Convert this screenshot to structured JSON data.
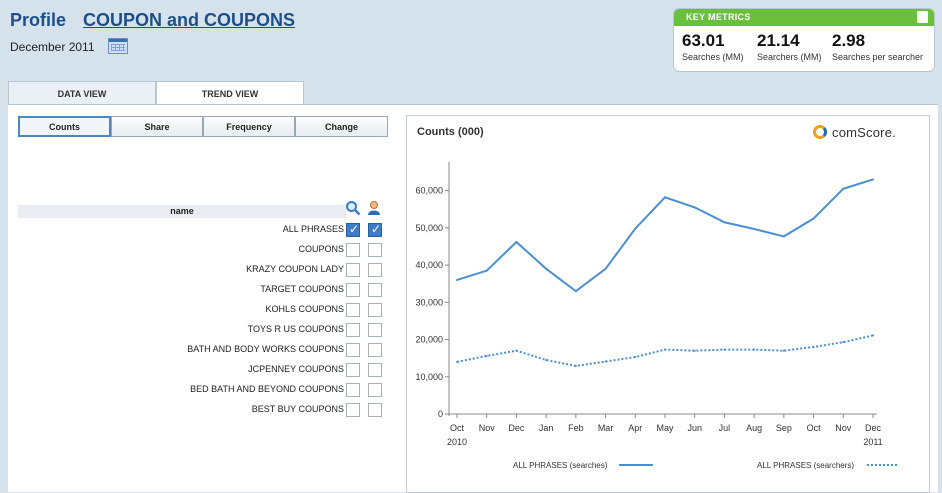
{
  "header": {
    "profile_label": "Profile",
    "query_title": "COUPON and COUPONS",
    "date": "December 2011"
  },
  "key_metrics": {
    "title": "KEY METRICS",
    "items": [
      {
        "value": "63.01",
        "label": "Searches (MM)"
      },
      {
        "value": "21.14",
        "label": "Searchers (MM)"
      },
      {
        "value": "2.98",
        "label": "Searches per searcher"
      }
    ]
  },
  "tabs": [
    {
      "label": "DATA VIEW",
      "active": false
    },
    {
      "label": "TREND VIEW",
      "active": true
    }
  ],
  "subtabs": [
    {
      "label": "Counts",
      "active": true
    },
    {
      "label": "Share",
      "active": false
    },
    {
      "label": "Frequency",
      "active": false
    },
    {
      "label": "Change",
      "active": false
    }
  ],
  "phrase_table": {
    "column_header": "name",
    "icons": [
      "search-icon",
      "person-icon"
    ],
    "rows": [
      {
        "name": "ALL PHRASES",
        "searches": true,
        "searchers": true
      },
      {
        "name": "COUPONS",
        "searches": false,
        "searchers": false
      },
      {
        "name": "KRAZY COUPON LADY",
        "searches": false,
        "searchers": false
      },
      {
        "name": "TARGET COUPONS",
        "searches": false,
        "searchers": false
      },
      {
        "name": "KOHLS COUPONS",
        "searches": false,
        "searchers": false
      },
      {
        "name": "TOYS R US COUPONS",
        "searches": false,
        "searchers": false
      },
      {
        "name": "BATH AND BODY WORKS COUPONS",
        "searches": false,
        "searchers": false
      },
      {
        "name": "JCPENNEY COUPONS",
        "searches": false,
        "searchers": false
      },
      {
        "name": "BED BATH AND BEYOND COUPONS",
        "searches": false,
        "searchers": false
      },
      {
        "name": "BEST BUY COUPONS",
        "searches": false,
        "searchers": false
      }
    ]
  },
  "brand": {
    "name": "comScore."
  },
  "chart_data": {
    "type": "line",
    "title": "Counts (000)",
    "categories": [
      "Oct",
      "Nov",
      "Dec",
      "Jan",
      "Feb",
      "Mar",
      "Apr",
      "May",
      "Jun",
      "Jul",
      "Aug",
      "Sep",
      "Oct",
      "Nov",
      "Dec"
    ],
    "year_labels": [
      "2010",
      "2011"
    ],
    "ylim": [
      0,
      65000
    ],
    "yticks": [
      "0",
      "10,000",
      "20,000",
      "30,000",
      "40,000",
      "50,000",
      "60,000"
    ],
    "series": [
      {
        "name": "ALL PHRASES (searches)",
        "style": "solid",
        "color": "#4a8fd1",
        "values": [
          36000,
          38500,
          46200,
          39000,
          33000,
          39000,
          49800,
          58200,
          55500,
          51500,
          49700,
          47700,
          52500,
          60500,
          63000
        ]
      },
      {
        "name": "ALL PHRASES (searchers)",
        "style": "dotted",
        "color": "#4a8fd1",
        "values": [
          14000,
          15600,
          17000,
          14500,
          12900,
          14100,
          15300,
          17300,
          17000,
          17300,
          17300,
          17000,
          18000,
          19300,
          21100
        ]
      }
    ]
  }
}
